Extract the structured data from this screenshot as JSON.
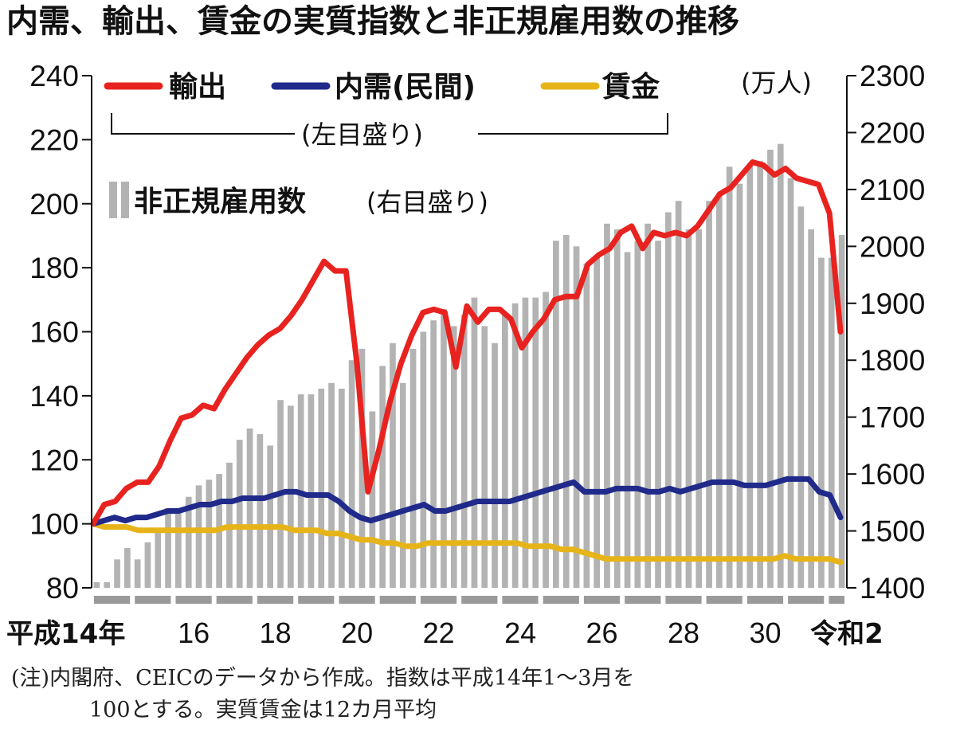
{
  "title": "内需、輸出、賃金の実質指数と非正規雇用数の推移",
  "unit_right": "(万人)",
  "legend": {
    "export_label": "輸出",
    "domestic_label": "内需(民間)",
    "wage_label": "賃金",
    "left_axis_note": "(左目盛り)",
    "bar_label": "非正規雇用数",
    "bar_note": "(右目盛り)"
  },
  "note_line1": "(注)内閣府、CEICのデータから作成。指数は平成14年1〜3月を",
  "note_line2": "100とする。実質賃金は12カ月平均",
  "colors": {
    "export": "#e8231f",
    "domestic": "#1f2a8a",
    "wage": "#e6b418",
    "bars": "#b3b3b3"
  },
  "chart_data": {
    "type": "line",
    "y_left_ticks": [
      "240",
      "220",
      "200",
      "180",
      "160",
      "140",
      "120",
      "100",
      "80"
    ],
    "y_right_ticks": [
      "2300",
      "2200",
      "2100",
      "2000",
      "1900",
      "1800",
      "1700",
      "1600",
      "1500",
      "1400"
    ],
    "ylim_left": [
      80,
      240
    ],
    "ylim_right": [
      1400,
      2300
    ],
    "x_ticks": [
      "平成14年",
      "16",
      "18",
      "20",
      "22",
      "24",
      "26",
      "28",
      "30",
      "令和2"
    ],
    "x_tick_positions": [
      0,
      8,
      16,
      24,
      32,
      40,
      48,
      56,
      64,
      72
    ],
    "series": [
      {
        "name": "輸出",
        "axis": "left",
        "values": [
          100,
          106,
          107,
          111,
          113,
          113,
          118,
          126,
          133,
          134,
          137,
          136,
          142,
          147,
          152,
          156,
          159,
          161,
          165,
          170,
          176,
          182,
          179,
          179,
          150,
          110,
          123,
          138,
          150,
          159,
          166,
          167,
          166,
          149,
          168,
          163,
          167,
          167,
          164,
          155,
          160,
          164,
          170,
          171,
          171,
          181,
          184,
          186,
          191,
          193,
          186,
          191,
          190,
          191,
          190,
          193,
          198,
          203,
          205,
          209,
          213,
          212,
          209,
          211,
          208,
          207,
          206,
          197,
          160
        ]
      },
      {
        "name": "内需(民間)",
        "axis": "left",
        "values": [
          100,
          101,
          102,
          101,
          102,
          102,
          103,
          104,
          104,
          105,
          106,
          106,
          107,
          107,
          108,
          108,
          108,
          109,
          110,
          110,
          109,
          109,
          109,
          107,
          104,
          102,
          101,
          102,
          103,
          104,
          105,
          106,
          104,
          104,
          105,
          106,
          107,
          107,
          107,
          107,
          108,
          109,
          110,
          111,
          112,
          113,
          110,
          110,
          110,
          111,
          111,
          111,
          110,
          110,
          111,
          110,
          111,
          112,
          113,
          113,
          113,
          112,
          112,
          112,
          113,
          114,
          114,
          114,
          110,
          109,
          102
        ]
      },
      {
        "name": "賃金",
        "axis": "left",
        "values": [
          100,
          99,
          99,
          99,
          98,
          98,
          98,
          98,
          98,
          98,
          98,
          98,
          99,
          99,
          99,
          99,
          99,
          99,
          98,
          98,
          98,
          97,
          97,
          96,
          95,
          95,
          94,
          94,
          93,
          93,
          94,
          94,
          94,
          94,
          94,
          94,
          94,
          94,
          94,
          93,
          93,
          93,
          92,
          92,
          91,
          90,
          89,
          89,
          89,
          89,
          89,
          89,
          89,
          89,
          89,
          89,
          89,
          89,
          89,
          89,
          89,
          89,
          90,
          89,
          89,
          89,
          89,
          88
        ]
      }
    ],
    "bars": {
      "name": "非正規雇用数",
      "axis": "right",
      "values": [
        1410,
        1410,
        1450,
        1470,
        1450,
        1480,
        1500,
        1540,
        1540,
        1560,
        1580,
        1590,
        1600,
        1620,
        1660,
        1680,
        1670,
        1650,
        1730,
        1720,
        1740,
        1740,
        1750,
        1760,
        1750,
        1800,
        1820,
        1710,
        1790,
        1830,
        1760,
        1820,
        1850,
        1870,
        1890,
        1860,
        1880,
        1910,
        1860,
        1830,
        1880,
        1900,
        1910,
        1910,
        1920,
        2010,
        2020,
        2000,
        1970,
        1980,
        2040,
        2030,
        1990,
        2010,
        2040,
        2010,
        2060,
        2080,
        2030,
        2030,
        2080,
        2090,
        2140,
        2110,
        2140,
        2150,
        2170,
        2180,
        2120,
        2070,
        2030,
        1980,
        1980,
        2020
      ]
    }
  }
}
